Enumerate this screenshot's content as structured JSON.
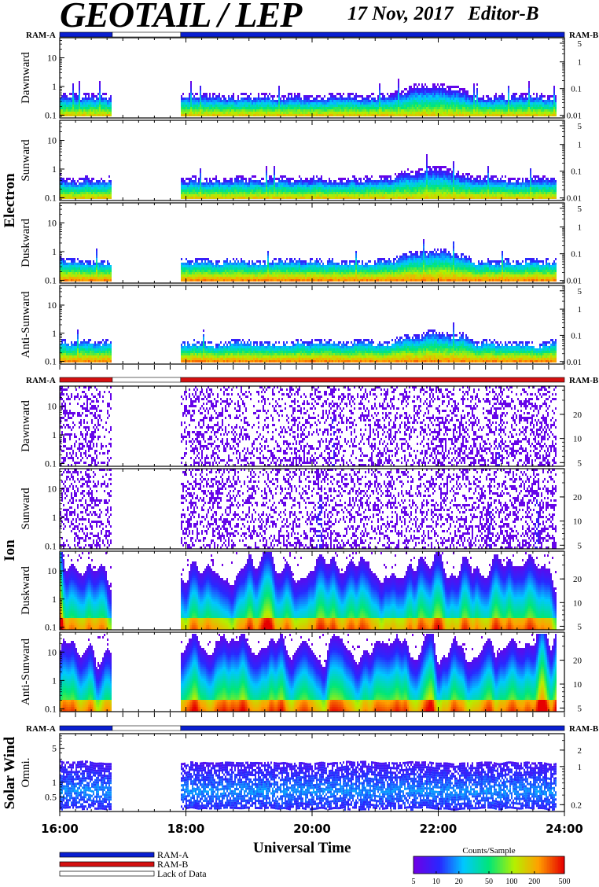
{
  "header": {
    "title": "GEOTAIL / LEP",
    "date": "17 Nov, 2017",
    "editor": "Editor-B"
  },
  "ram_labels": {
    "left": "RAM-A",
    "right": "RAM-B"
  },
  "groups": [
    {
      "name": "Electron"
    },
    {
      "name": "Ion"
    },
    {
      "name": "Solar Wind"
    }
  ],
  "chart_data": {
    "type": "heatmap",
    "x_axis": {
      "label": "Universal Time",
      "range": [
        "16:00",
        "24:00"
      ],
      "ticks": [
        "16:00",
        "18:00",
        "20:00",
        "22:00",
        "24:00"
      ]
    },
    "data_gap": [
      "16:50",
      "17:55"
    ],
    "panels": [
      {
        "group": "Electron",
        "direction": "Dawnward",
        "left_ticks": [
          "10",
          "1",
          "0.1"
        ],
        "right_ticks": [
          "5",
          "1",
          "0.1",
          "0.01"
        ],
        "ylim": [
          0.08,
          50
        ],
        "log": true
      },
      {
        "group": "Electron",
        "direction": "Sunward",
        "left_ticks": [
          "10",
          "1",
          "0.1"
        ],
        "right_ticks": [
          "5",
          "1",
          "0.1",
          "0.01"
        ],
        "ylim": [
          0.08,
          50
        ],
        "log": true
      },
      {
        "group": "Electron",
        "direction": "Duskward",
        "left_ticks": [
          "10",
          "1",
          "0.1"
        ],
        "right_ticks": [
          "5",
          "1",
          "0.1",
          "0.01"
        ],
        "ylim": [
          0.08,
          50
        ],
        "log": true
      },
      {
        "group": "Electron",
        "direction": "Anti-Sunward",
        "left_ticks": [
          "10",
          "1",
          "0.1"
        ],
        "right_ticks": [
          "5",
          "1",
          "0.1",
          "0.01"
        ],
        "ylim": [
          0.08,
          50
        ],
        "log": true
      },
      {
        "group": "Ion",
        "direction": "Dawnward",
        "left_ticks": [
          "10",
          "1",
          "0.1"
        ],
        "right_ticks": [
          "20",
          "10",
          "5"
        ],
        "ylim": [
          0.08,
          50
        ],
        "log": true
      },
      {
        "group": "Ion",
        "direction": "Sunward",
        "left_ticks": [
          "10",
          "1",
          "0.1"
        ],
        "right_ticks": [
          "20",
          "10",
          "5"
        ],
        "ylim": [
          0.08,
          50
        ],
        "log": true
      },
      {
        "group": "Ion",
        "direction": "Duskward",
        "left_ticks": [
          "10",
          "1",
          "0.1"
        ],
        "right_ticks": [
          "20",
          "10",
          "5"
        ],
        "ylim": [
          0.08,
          50
        ],
        "log": true
      },
      {
        "group": "Ion",
        "direction": "Anti-Sunward",
        "left_ticks": [
          "10",
          "1",
          "0.1"
        ],
        "right_ticks": [
          "20",
          "10",
          "5"
        ],
        "ylim": [
          0.08,
          50
        ],
        "log": true
      },
      {
        "group": "Solar Wind",
        "direction": "Omni.",
        "left_ticks": [
          "5",
          "1",
          "0.5"
        ],
        "right_ticks": [
          "2",
          "1",
          "0.2"
        ],
        "ylim": [
          0.25,
          10
        ],
        "log": true
      }
    ],
    "ram_bars": [
      {
        "segments": [
          {
            "from": "16:00",
            "to": "16:50",
            "mode": "RAM-A"
          },
          {
            "from": "16:50",
            "to": "17:55",
            "mode": "Lack of Data"
          },
          {
            "from": "17:55",
            "to": "24:00",
            "mode": "RAM-A"
          }
        ]
      },
      {
        "segments": [
          {
            "from": "16:00",
            "to": "16:50",
            "mode": "RAM-B"
          },
          {
            "from": "16:50",
            "to": "17:55",
            "mode": "Lack of Data"
          },
          {
            "from": "17:55",
            "to": "24:00",
            "mode": "RAM-B"
          }
        ]
      },
      {
        "segments": [
          {
            "from": "16:00",
            "to": "16:50",
            "mode": "RAM-A"
          },
          {
            "from": "16:50",
            "to": "17:55",
            "mode": "Lack of Data"
          },
          {
            "from": "17:55",
            "to": "24:00",
            "mode": "RAM-A"
          }
        ]
      }
    ],
    "mode_legend": [
      {
        "label": "RAM-A",
        "color": "#0a1fd0"
      },
      {
        "label": "RAM-B",
        "color": "#d41010"
      },
      {
        "label": "Lack of Data",
        "color": "#ffffff"
      }
    ],
    "colorbar": {
      "title": "Counts/Sample",
      "ticks": [
        "5",
        "10",
        "20",
        "50",
        "100",
        "200",
        "500"
      ],
      "range": [
        5,
        500
      ],
      "log": true
    }
  }
}
